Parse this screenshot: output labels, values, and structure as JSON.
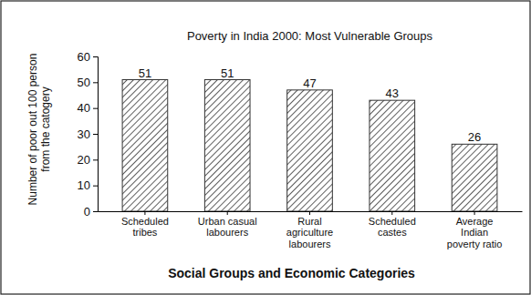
{
  "chart_data": {
    "type": "bar",
    "title": "Poverty in India 2000: Most Vulnerable Groups",
    "y_label": "Number of poor out 100 person\nfrom the catogery",
    "x_label": "Social Groups and Economic Categories",
    "categories": [
      "Scheduled\ntribes",
      "Urban casual\nlabourers",
      "Rural\nagriculture\nlabourers",
      "Scheduled\ncastes",
      "Average\nIndian\npoverty ratio"
    ],
    "values": [
      51,
      51,
      47,
      43,
      26
    ],
    "color": "#333333",
    "ylim": [
      0,
      60
    ],
    "yticks": [
      0,
      10,
      20,
      30,
      40,
      50,
      60
    ],
    "grid": false,
    "data_labels": true
  }
}
